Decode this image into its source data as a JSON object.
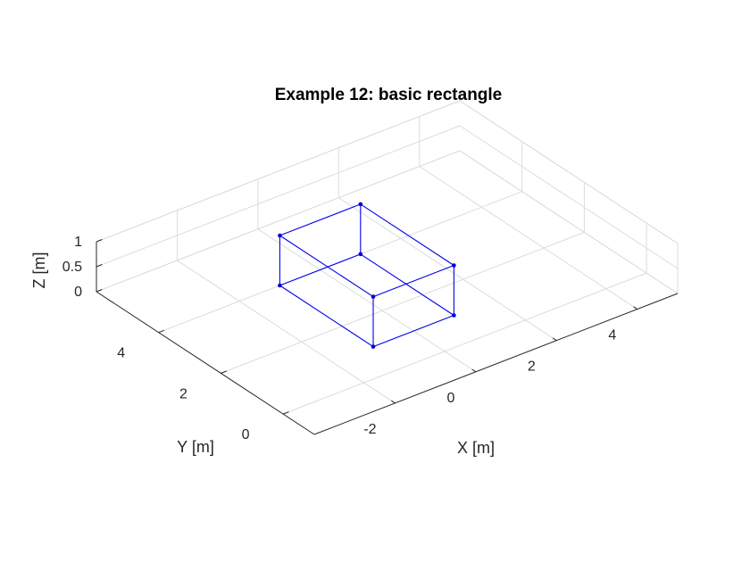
{
  "chart_data": {
    "type": "3d-wireframe",
    "title": "Example 12: basic rectangle",
    "xlabel": "X [m]",
    "ylabel": "Y [m]",
    "zlabel": "Z [m]",
    "xlim": [
      -4,
      5
    ],
    "ylim": [
      -1,
      6
    ],
    "zlim": [
      0,
      1
    ],
    "xticks": [
      -2,
      0,
      2,
      4
    ],
    "yticks": [
      0,
      2,
      4
    ],
    "zticks": [
      0,
      0.5,
      1
    ],
    "xtick_labels": [
      "-2",
      "0",
      "2",
      "4"
    ],
    "ytick_labels": [
      "0",
      "2",
      "4"
    ],
    "ztick_labels": [
      "0",
      "0.5",
      "1"
    ],
    "grid": true,
    "line_color": "#0000ee",
    "vertices": [
      {
        "x": -1,
        "y": 1,
        "z": 0
      },
      {
        "x": 1,
        "y": 1,
        "z": 0
      },
      {
        "x": 1,
        "y": 4,
        "z": 0
      },
      {
        "x": -1,
        "y": 4,
        "z": 0
      },
      {
        "x": -1,
        "y": 1,
        "z": 1
      },
      {
        "x": 1,
        "y": 1,
        "z": 1
      },
      {
        "x": 1,
        "y": 4,
        "z": 1
      },
      {
        "x": -1,
        "y": 4,
        "z": 1
      }
    ],
    "edges": [
      [
        0,
        1
      ],
      [
        1,
        2
      ],
      [
        2,
        3
      ],
      [
        3,
        0
      ],
      [
        4,
        5
      ],
      [
        5,
        6
      ],
      [
        6,
        7
      ],
      [
        7,
        4
      ],
      [
        0,
        4
      ],
      [
        1,
        5
      ],
      [
        2,
        6
      ],
      [
        3,
        7
      ]
    ]
  }
}
